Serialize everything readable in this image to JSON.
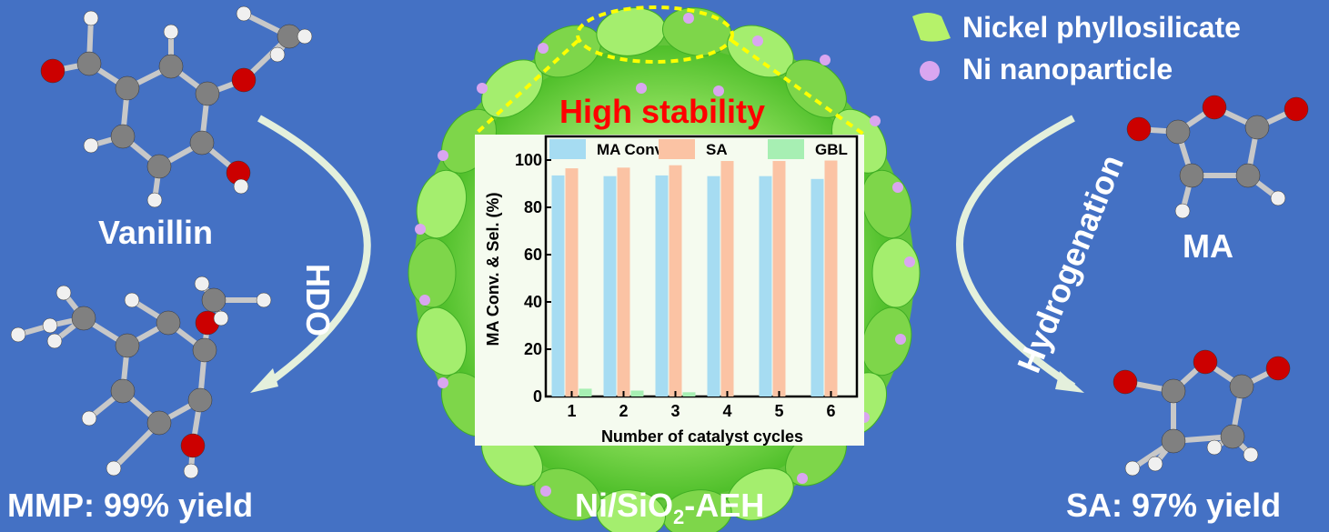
{
  "legend_top": {
    "items": [
      {
        "label": "Nickel phyllosilicate",
        "icon": "green-sheet-icon",
        "color": "#b6f26a"
      },
      {
        "label": "Ni nanoparticle",
        "icon": "purple-sphere-icon",
        "color": "#d9a6f0"
      }
    ]
  },
  "left": {
    "reactant": "Vanillin",
    "reaction": "HDO",
    "product": "MMP: 99% yield"
  },
  "right": {
    "reactant": "MA",
    "reaction": "Hydrogenation",
    "product": "SA: 97% yield"
  },
  "center": {
    "catalyst_prefix": "Ni/SiO",
    "catalyst_sub": "2",
    "catalyst_suffix": "-AEH",
    "highlight": "High stability",
    "highlight_color": "#ff0000"
  },
  "colors": {
    "background": "#4471c4",
    "arrow": "#e4f0dc",
    "atom_carbon": "#808080",
    "atom_oxygen": "#cc0000",
    "atom_hydrogen": "#f0f0f0"
  },
  "chart_data": {
    "type": "bar",
    "categories": [
      "1",
      "2",
      "3",
      "4",
      "5",
      "6"
    ],
    "xlabel": "Number of catalyst cycles",
    "ylabel": "MA Conv. & Sel. (%)",
    "ylim": [
      0,
      110
    ],
    "yticks": [
      "0",
      "20",
      "40",
      "60",
      "80",
      "100"
    ],
    "legend_position": "top",
    "series": [
      {
        "name": "MA Conv.",
        "color": "#a6dcf2",
        "values": [
          93.5,
          93.2,
          93.5,
          93.2,
          93.2,
          92.0
        ]
      },
      {
        "name": "SA",
        "color": "#fbc3a4",
        "values": [
          96.5,
          96.8,
          97.8,
          99.6,
          99.6,
          99.8
        ]
      },
      {
        "name": "GBL",
        "color": "#a7efb3",
        "values": [
          3.3,
          2.5,
          1.8,
          0,
          0,
          0
        ]
      }
    ]
  }
}
